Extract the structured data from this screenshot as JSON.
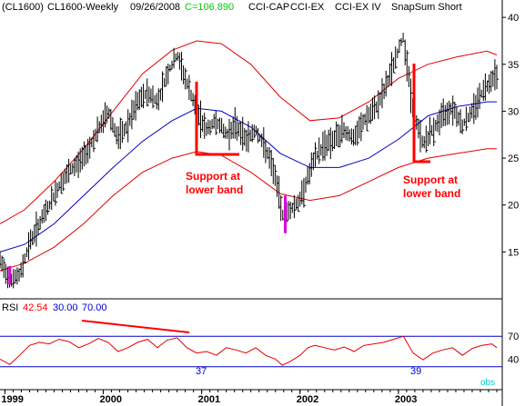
{
  "header": {
    "symbol": "(CL1600)",
    "name": "CL1600-Weekly",
    "date": "09/26/2008",
    "close": "C=106.890",
    "studies": [
      "CCI-CAP",
      "CCI-EX",
      "CCI-EX IV",
      "SnapSum Short"
    ]
  },
  "rsi_header": {
    "label": "RSI",
    "value": "42.54",
    "low": "30.00",
    "high": "70.00"
  },
  "annotations": [
    {
      "text_line1": "Support at",
      "text_line2": "lower band"
    },
    {
      "text_line1": "Support at",
      "text_line2": "lower band"
    }
  ],
  "rsi_labels": [
    "37",
    "39"
  ],
  "obs_label": "obs",
  "colors": {
    "price_bars": "#000000",
    "envelope": "#e00000",
    "midline": "#0000cc",
    "rsi_line": "#e00000",
    "rsi_levels": "#0000cc",
    "highlight": "#dd00dd",
    "annotation": "#ff0000",
    "close_value": "#00cc00"
  },
  "chart_data": [
    {
      "type": "line",
      "title": "CL1600-Weekly",
      "x_ticks": [
        "1999",
        "2000",
        "2001",
        "2002",
        "2003"
      ],
      "y_ticks": [
        15,
        20,
        25,
        30,
        35,
        40
      ],
      "ylim": [
        10,
        40.5
      ],
      "x_range": [
        1998.95,
        2004.0
      ],
      "series": [
        {
          "name": "price",
          "x": [
            1998.95,
            1999.05,
            1999.15,
            1999.25,
            1999.35,
            1999.45,
            1999.55,
            1999.65,
            1999.75,
            1999.85,
            1999.95,
            2000.05,
            2000.15,
            2000.25,
            2000.35,
            2000.45,
            2000.55,
            2000.65,
            2000.75,
            2000.85,
            2000.95,
            2001.05,
            2001.15,
            2001.25,
            2001.35,
            2001.45,
            2001.55,
            2001.65,
            2001.75,
            2001.82,
            2001.9,
            2002.0,
            2002.08,
            2002.15,
            2002.25,
            2002.35,
            2002.45,
            2002.55,
            2002.65,
            2002.75,
            2002.85,
            2002.95,
            2003.05,
            2003.15,
            2003.25,
            2003.35,
            2003.45,
            2003.55,
            2003.65,
            2003.75,
            2003.85,
            2003.95,
            2004.0
          ],
          "values": [
            14.0,
            12.0,
            12.5,
            16.0,
            18.0,
            20.0,
            22.0,
            23.5,
            24.5,
            26.0,
            28.0,
            30.0,
            27.0,
            28.5,
            31.0,
            32.0,
            31.0,
            34.0,
            36.0,
            33.0,
            30.0,
            28.0,
            29.0,
            27.5,
            28.5,
            27.0,
            28.0,
            26.0,
            23.0,
            19.0,
            19.5,
            20.5,
            23.0,
            25.0,
            26.5,
            27.0,
            28.0,
            27.0,
            29.0,
            30.0,
            32.0,
            35.0,
            38.0,
            30.0,
            26.5,
            28.0,
            29.5,
            30.5,
            28.5,
            30.0,
            32.0,
            33.5,
            34.0
          ]
        },
        {
          "name": "upper band",
          "x": [
            1998.95,
            1999.2,
            1999.5,
            1999.8,
            2000.1,
            2000.4,
            2000.7,
            2000.95,
            2001.2,
            2001.5,
            2001.8,
            2002.1,
            2002.4,
            2002.7,
            2003.0,
            2003.3,
            2003.6,
            2003.9,
            2004.0
          ],
          "values": [
            18.0,
            19.5,
            22.5,
            26.0,
            30.0,
            34.0,
            36.5,
            37.5,
            37.2,
            35.0,
            31.5,
            29.0,
            29.3,
            31.0,
            33.5,
            35.0,
            35.8,
            36.4,
            36.0
          ]
        },
        {
          "name": "middle band",
          "x": [
            1998.95,
            1999.2,
            1999.5,
            1999.8,
            2000.1,
            2000.4,
            2000.7,
            2000.95,
            2001.2,
            2001.5,
            2001.8,
            2002.1,
            2002.4,
            2002.7,
            2003.0,
            2003.3,
            2003.6,
            2003.9,
            2004.0
          ],
          "values": [
            15.0,
            15.8,
            18.0,
            21.0,
            24.0,
            26.8,
            29.0,
            30.3,
            30.0,
            28.3,
            25.5,
            24.0,
            24.0,
            25.0,
            27.0,
            29.5,
            30.5,
            31.0,
            31.0
          ]
        },
        {
          "name": "lower band",
          "x": [
            1998.95,
            1999.2,
            1999.5,
            1999.8,
            2000.1,
            2000.4,
            2000.7,
            2000.95,
            2001.2,
            2001.5,
            2001.8,
            2002.1,
            2002.4,
            2002.7,
            2003.0,
            2003.3,
            2003.6,
            2003.9,
            2004.0
          ],
          "values": [
            13.0,
            13.8,
            15.5,
            18.0,
            21.0,
            23.5,
            25.0,
            25.7,
            25.3,
            23.5,
            21.2,
            20.5,
            21.0,
            22.5,
            24.0,
            25.0,
            25.5,
            26.0,
            26.0
          ]
        }
      ]
    },
    {
      "type": "line",
      "title": "RSI",
      "ylim": [
        0,
        100
      ],
      "levels": [
        30,
        70
      ],
      "y_ticks": [
        40,
        70
      ],
      "series": [
        {
          "name": "RSI",
          "x": [
            1998.95,
            1999.05,
            1999.15,
            1999.25,
            1999.35,
            1999.45,
            1999.55,
            1999.65,
            1999.75,
            1999.85,
            1999.95,
            2000.05,
            2000.15,
            2000.25,
            2000.35,
            2000.45,
            2000.55,
            2000.65,
            2000.75,
            2000.85,
            2000.95,
            2001.05,
            2001.15,
            2001.25,
            2001.35,
            2001.45,
            2001.55,
            2001.65,
            2001.75,
            2001.82,
            2001.9,
            2002.0,
            2002.08,
            2002.15,
            2002.25,
            2002.35,
            2002.45,
            2002.55,
            2002.65,
            2002.75,
            2002.85,
            2002.95,
            2003.05,
            2003.15,
            2003.25,
            2003.35,
            2003.45,
            2003.55,
            2003.65,
            2003.75,
            2003.85,
            2003.95,
            2004.0
          ],
          "values": [
            40,
            33,
            45,
            58,
            62,
            60,
            66,
            63,
            55,
            60,
            67,
            62,
            50,
            55,
            62,
            66,
            55,
            65,
            68,
            55,
            48,
            50,
            45,
            55,
            52,
            48,
            55,
            45,
            40,
            32,
            37,
            45,
            55,
            58,
            55,
            52,
            56,
            50,
            58,
            60,
            62,
            66,
            70,
            48,
            39,
            48,
            52,
            55,
            45,
            54,
            58,
            60,
            55
          ]
        }
      ]
    }
  ]
}
